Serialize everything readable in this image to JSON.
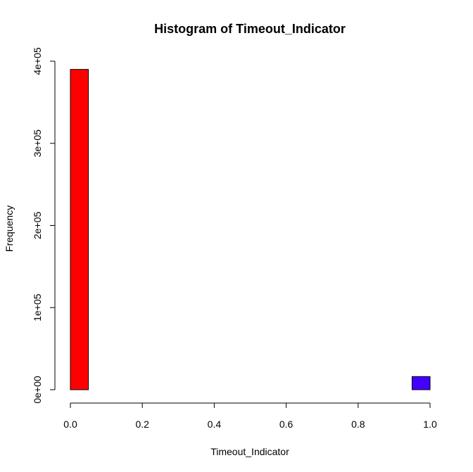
{
  "chart_data": {
    "type": "bar",
    "title": "Histogram of Timeout_Indicator",
    "xlabel": "Timeout_Indicator",
    "ylabel": "Frequency",
    "xlim": [
      0,
      1
    ],
    "ylim": [
      0,
      400000
    ],
    "x_ticks": [
      0.0,
      0.2,
      0.4,
      0.6,
      0.8,
      1.0
    ],
    "x_tick_labels": [
      "0.0",
      "0.2",
      "0.4",
      "0.6",
      "0.8",
      "1.0"
    ],
    "y_ticks": [
      0,
      100000,
      200000,
      300000,
      400000
    ],
    "y_tick_labels": [
      "0e+00",
      "1e+05",
      "2e+05",
      "3e+05",
      "4e+05"
    ],
    "bins": [
      {
        "x0": 0.0,
        "x1": 0.05,
        "count": 390000,
        "color": "#ff0000"
      },
      {
        "x0": 0.05,
        "x1": 0.1,
        "count": 0,
        "color": "#ff0000"
      },
      {
        "x0": 0.1,
        "x1": 0.15,
        "count": 0,
        "color": "#ff0000"
      },
      {
        "x0": 0.15,
        "x1": 0.2,
        "count": 0,
        "color": "#ff0000"
      },
      {
        "x0": 0.2,
        "x1": 0.25,
        "count": 0,
        "color": "#ff0000"
      },
      {
        "x0": 0.25,
        "x1": 0.3,
        "count": 0,
        "color": "#ff0000"
      },
      {
        "x0": 0.3,
        "x1": 0.35,
        "count": 0,
        "color": "#ff0000"
      },
      {
        "x0": 0.35,
        "x1": 0.4,
        "count": 0,
        "color": "#ff0000"
      },
      {
        "x0": 0.4,
        "x1": 0.45,
        "count": 0,
        "color": "#ff0000"
      },
      {
        "x0": 0.45,
        "x1": 0.5,
        "count": 0,
        "color": "#ff0000"
      },
      {
        "x0": 0.5,
        "x1": 0.55,
        "count": 0,
        "color": "#ff0000"
      },
      {
        "x0": 0.55,
        "x1": 0.6,
        "count": 0,
        "color": "#ff0000"
      },
      {
        "x0": 0.6,
        "x1": 0.65,
        "count": 0,
        "color": "#ff0000"
      },
      {
        "x0": 0.65,
        "x1": 0.7,
        "count": 0,
        "color": "#ff0000"
      },
      {
        "x0": 0.7,
        "x1": 0.75,
        "count": 0,
        "color": "#ff0000"
      },
      {
        "x0": 0.75,
        "x1": 0.8,
        "count": 0,
        "color": "#ff0000"
      },
      {
        "x0": 0.8,
        "x1": 0.85,
        "count": 0,
        "color": "#ff0000"
      },
      {
        "x0": 0.85,
        "x1": 0.9,
        "count": 0,
        "color": "#ff0000"
      },
      {
        "x0": 0.9,
        "x1": 0.95,
        "count": 0,
        "color": "#ff0000"
      },
      {
        "x0": 0.95,
        "x1": 1.0,
        "count": 16000,
        "color": "#4400ff"
      }
    ],
    "grid": false,
    "legend": "none"
  }
}
